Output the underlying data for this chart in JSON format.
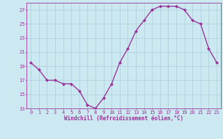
{
  "x": [
    0,
    1,
    2,
    3,
    4,
    5,
    6,
    7,
    8,
    9,
    10,
    11,
    12,
    13,
    14,
    15,
    16,
    17,
    18,
    19,
    20,
    21,
    22,
    23
  ],
  "y": [
    19.5,
    18.5,
    17.0,
    17.0,
    16.5,
    16.5,
    15.5,
    13.5,
    13.0,
    14.5,
    16.5,
    19.5,
    21.5,
    24.0,
    25.5,
    27.0,
    27.5,
    27.5,
    27.5,
    27.0,
    25.5,
    25.0,
    21.5,
    19.5
  ],
  "line_color": "#993399",
  "marker": "D",
  "marker_size": 2.0,
  "xlabel": "Windchill (Refroidissement éolien,°C)",
  "xlim": [
    -0.5,
    23.5
  ],
  "ylim": [
    13,
    28
  ],
  "yticks": [
    13,
    15,
    17,
    19,
    21,
    23,
    25,
    27
  ],
  "xticks": [
    0,
    1,
    2,
    3,
    4,
    5,
    6,
    7,
    8,
    9,
    10,
    11,
    12,
    13,
    14,
    15,
    16,
    17,
    18,
    19,
    20,
    21,
    22,
    23
  ],
  "bg_color": "#cce8f0",
  "grid_color": "#aaccdd",
  "tick_color": "#993399",
  "label_color": "#993399",
  "font_family": "monospace",
  "xlabel_fontsize": 5.5,
  "tick_fontsize": 5.0,
  "linewidth": 1.0
}
